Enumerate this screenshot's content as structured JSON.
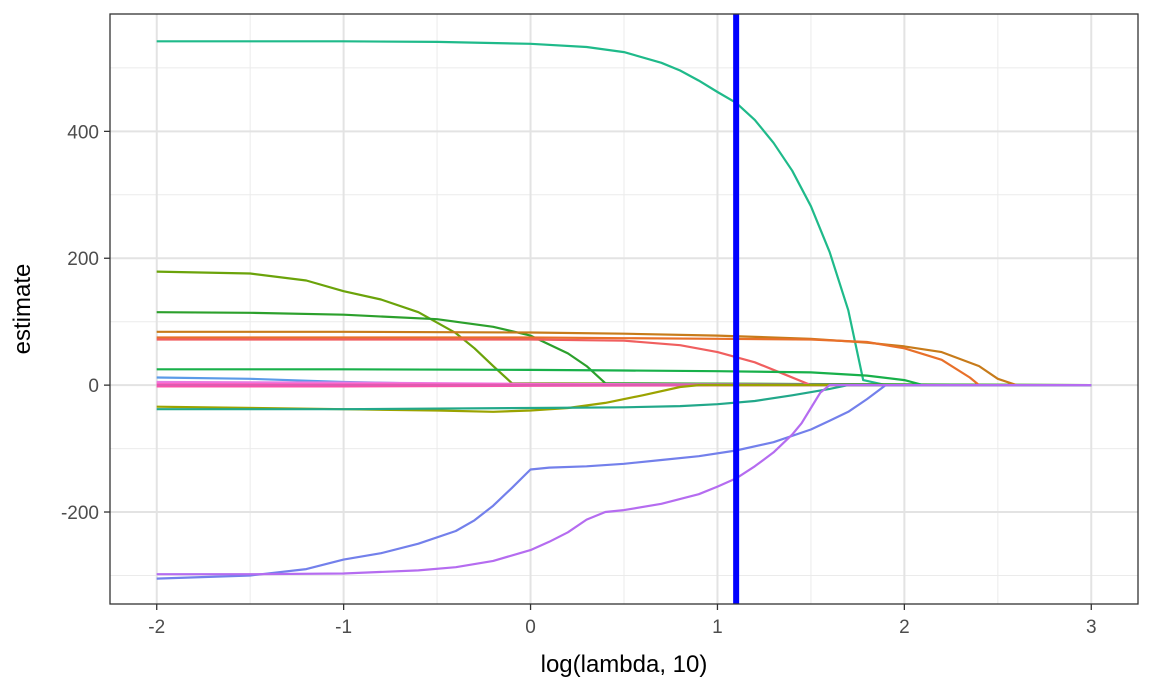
{
  "chart_data": {
    "type": "line",
    "title": "",
    "xlabel": "log(lambda, 10)",
    "ylabel": "estimate",
    "xlim": [
      -2.25,
      3.25
    ],
    "ylim": [
      -345,
      585
    ],
    "x_ticks": [
      -2,
      -1,
      0,
      1,
      2,
      3
    ],
    "x_tick_labels": [
      "-2",
      "-1",
      "0",
      "1",
      "2",
      "3"
    ],
    "y_ticks": [
      -200,
      0,
      200,
      400
    ],
    "y_tick_labels": [
      "-200",
      "0",
      "200",
      "400"
    ],
    "grid": true,
    "legend": "none",
    "vline": {
      "x": 1.1,
      "color": "#0000FF"
    },
    "series": [
      {
        "color": "#1FBA8A",
        "points": [
          [
            -2,
            542
          ],
          [
            -1,
            542
          ],
          [
            -0.5,
            541
          ],
          [
            0,
            538
          ],
          [
            0.3,
            533
          ],
          [
            0.5,
            525
          ],
          [
            0.7,
            508
          ],
          [
            0.8,
            496
          ],
          [
            0.9,
            480
          ],
          [
            1.0,
            462
          ],
          [
            1.1,
            445
          ],
          [
            1.2,
            418
          ],
          [
            1.3,
            382
          ],
          [
            1.4,
            338
          ],
          [
            1.5,
            282
          ],
          [
            1.6,
            210
          ],
          [
            1.7,
            118
          ],
          [
            1.78,
            8
          ],
          [
            1.9,
            0
          ],
          [
            3,
            0
          ]
        ]
      },
      {
        "color": "#6BA30A",
        "points": [
          [
            -2,
            179
          ],
          [
            -1.5,
            176
          ],
          [
            -1.2,
            165
          ],
          [
            -1,
            148
          ],
          [
            -0.8,
            135
          ],
          [
            -0.6,
            115
          ],
          [
            -0.4,
            82
          ],
          [
            -0.3,
            58
          ],
          [
            -0.2,
            30
          ],
          [
            -0.1,
            3
          ],
          [
            3,
            0
          ]
        ]
      },
      {
        "color": "#2CA02C",
        "points": [
          [
            -2,
            115
          ],
          [
            -1.5,
            114
          ],
          [
            -1,
            111
          ],
          [
            -0.5,
            104
          ],
          [
            -0.2,
            92
          ],
          [
            0,
            78
          ],
          [
            0.2,
            50
          ],
          [
            0.3,
            30
          ],
          [
            0.4,
            3
          ],
          [
            3,
            0
          ]
        ]
      },
      {
        "color": "#C77B1A",
        "points": [
          [
            -2,
            84
          ],
          [
            -1,
            84
          ],
          [
            0,
            83
          ],
          [
            0.5,
            81
          ],
          [
            1,
            78
          ],
          [
            1.5,
            73
          ],
          [
            1.8,
            67
          ],
          [
            2,
            61
          ],
          [
            2.2,
            52
          ],
          [
            2.4,
            30
          ],
          [
            2.5,
            10
          ],
          [
            2.6,
            0
          ],
          [
            3,
            0
          ]
        ]
      },
      {
        "color": "#E8702A",
        "points": [
          [
            -2,
            75
          ],
          [
            -1,
            75
          ],
          [
            0,
            75
          ],
          [
            0.5,
            74
          ],
          [
            1,
            73
          ],
          [
            1.5,
            72
          ],
          [
            1.8,
            68
          ],
          [
            2,
            58
          ],
          [
            2.2,
            40
          ],
          [
            2.35,
            12
          ],
          [
            2.4,
            0
          ],
          [
            3,
            0
          ]
        ]
      },
      {
        "color": "#F05F5F",
        "points": [
          [
            -2,
            72
          ],
          [
            -1,
            72
          ],
          [
            0,
            72
          ],
          [
            0.5,
            70
          ],
          [
            0.8,
            63
          ],
          [
            1,
            52
          ],
          [
            1.2,
            36
          ],
          [
            1.35,
            18
          ],
          [
            1.5,
            0
          ],
          [
            3,
            0
          ]
        ]
      },
      {
        "color": "#18B04A",
        "points": [
          [
            -2,
            25
          ],
          [
            -1,
            25
          ],
          [
            0,
            24
          ],
          [
            0.5,
            23
          ],
          [
            1,
            22
          ],
          [
            1.5,
            20
          ],
          [
            1.8,
            15
          ],
          [
            2,
            8
          ],
          [
            2.1,
            0
          ],
          [
            3,
            0
          ]
        ]
      },
      {
        "color": "#5B9BE8",
        "points": [
          [
            -2,
            12
          ],
          [
            -1.5,
            10
          ],
          [
            -1,
            5
          ],
          [
            -0.5,
            2
          ],
          [
            0,
            0
          ],
          [
            3,
            0
          ]
        ]
      },
      {
        "color": "#E87AE0",
        "points": [
          [
            -2,
            5
          ],
          [
            -1,
            4
          ],
          [
            0,
            2
          ],
          [
            1,
            1
          ],
          [
            2,
            0
          ],
          [
            3,
            0
          ]
        ]
      },
      {
        "color": "#FF61C3",
        "points": [
          [
            -2,
            2
          ],
          [
            -1,
            1.5
          ],
          [
            0,
            1
          ],
          [
            1,
            0.5
          ],
          [
            2,
            0
          ],
          [
            3,
            0
          ]
        ]
      },
      {
        "color": "#FF4FA8",
        "points": [
          [
            -2,
            -2
          ],
          [
            -1,
            -2
          ],
          [
            0,
            -1
          ],
          [
            1,
            -0.5
          ],
          [
            2,
            0
          ],
          [
            3,
            0
          ]
        ]
      },
      {
        "color": "#E05AB0",
        "points": [
          [
            -2,
            0
          ],
          [
            3,
            0
          ]
        ]
      },
      {
        "color": "#9BA300",
        "points": [
          [
            -2,
            -34
          ],
          [
            -1,
            -38
          ],
          [
            -0.5,
            -40
          ],
          [
            -0.2,
            -42
          ],
          [
            0,
            -40
          ],
          [
            0.2,
            -36
          ],
          [
            0.4,
            -28
          ],
          [
            0.6,
            -16
          ],
          [
            0.8,
            -3
          ],
          [
            0.9,
            0
          ],
          [
            3,
            0
          ]
        ]
      },
      {
        "color": "#22A88A",
        "points": [
          [
            -2,
            -38
          ],
          [
            -1,
            -38
          ],
          [
            0,
            -36
          ],
          [
            0.5,
            -35
          ],
          [
            0.8,
            -33
          ],
          [
            1,
            -30
          ],
          [
            1.2,
            -25
          ],
          [
            1.4,
            -16
          ],
          [
            1.6,
            -6
          ],
          [
            1.7,
            0
          ],
          [
            3,
            0
          ]
        ]
      },
      {
        "color": "#7380EB",
        "points": [
          [
            -2,
            -305
          ],
          [
            -1.5,
            -300
          ],
          [
            -1.2,
            -290
          ],
          [
            -1,
            -275
          ],
          [
            -0.8,
            -265
          ],
          [
            -0.6,
            -250
          ],
          [
            -0.4,
            -230
          ],
          [
            -0.3,
            -213
          ],
          [
            -0.2,
            -190
          ],
          [
            -0.1,
            -162
          ],
          [
            0,
            -133
          ],
          [
            0.1,
            -130
          ],
          [
            0.3,
            -128
          ],
          [
            0.5,
            -124
          ],
          [
            0.7,
            -118
          ],
          [
            0.9,
            -112
          ],
          [
            1.1,
            -103
          ],
          [
            1.3,
            -90
          ],
          [
            1.5,
            -70
          ],
          [
            1.6,
            -56
          ],
          [
            1.7,
            -42
          ],
          [
            1.8,
            -22
          ],
          [
            1.9,
            0
          ],
          [
            3,
            0
          ]
        ]
      },
      {
        "color": "#B56CF0",
        "points": [
          [
            -2,
            -298
          ],
          [
            -1.5,
            -298
          ],
          [
            -1,
            -297
          ],
          [
            -0.6,
            -292
          ],
          [
            -0.4,
            -287
          ],
          [
            -0.2,
            -277
          ],
          [
            0,
            -260
          ],
          [
            0.1,
            -247
          ],
          [
            0.2,
            -232
          ],
          [
            0.3,
            -212
          ],
          [
            0.4,
            -200
          ],
          [
            0.5,
            -197
          ],
          [
            0.7,
            -187
          ],
          [
            0.9,
            -172
          ],
          [
            1.0,
            -160
          ],
          [
            1.1,
            -147
          ],
          [
            1.2,
            -128
          ],
          [
            1.3,
            -106
          ],
          [
            1.4,
            -78
          ],
          [
            1.45,
            -60
          ],
          [
            1.5,
            -36
          ],
          [
            1.55,
            -12
          ],
          [
            1.6,
            0
          ],
          [
            3,
            0
          ]
        ]
      }
    ]
  }
}
